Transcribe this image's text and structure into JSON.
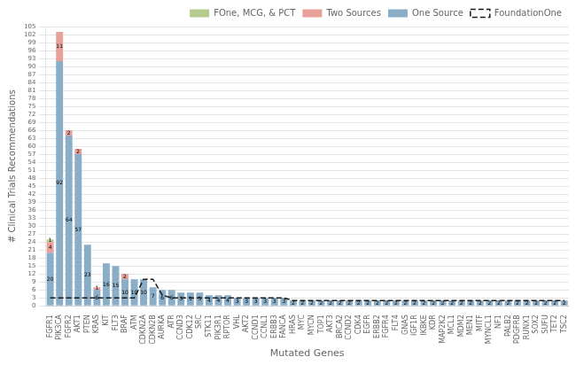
{
  "chart_data": {
    "type": "bar",
    "xlabel": "Mutated Genes",
    "ylabel": "# Clinical Trials Recommendations",
    "categories": [
      "FGFR1",
      "PIK3CA",
      "FGFR2",
      "AKT1",
      "PTEN",
      "KRAS",
      "KIT",
      "FLT3",
      "BRAF",
      "ATM",
      "CDKN2A",
      "CDKN2B",
      "AURKA",
      "ATR",
      "CCND3",
      "CDK12",
      "SRC",
      "STK11",
      "PIK3R1",
      "RPTOR",
      "VHL",
      "AKT2",
      "CCND1",
      "CCNL1",
      "ERBB3",
      "FANCA",
      "HRAS",
      "MYC",
      "MYCN",
      "TOP1",
      "AKT3",
      "BRCA2",
      "CCND2",
      "CDK4",
      "EGFR",
      "ERBB2",
      "FGFR4",
      "FLT4",
      "GNAS",
      "IGF1R",
      "IKBKE",
      "KDR",
      "MAP2K2",
      "MCL1",
      "MDM2",
      "MEN1",
      "MITF",
      "MYNCL1",
      "NF1",
      "PALB2",
      "PDGFRB",
      "RUNX1",
      "SOX2",
      "SUFU",
      "TET2",
      "TSC2"
    ],
    "series": [
      {
        "name": "One Source",
        "color": "#8aaec8",
        "data_labels": true,
        "values": [
          20,
          92,
          64,
          57,
          23,
          6,
          16,
          15,
          10,
          10,
          10,
          7,
          6,
          6,
          5,
          5,
          5,
          4,
          4,
          4,
          3,
          3,
          3,
          3,
          3,
          3,
          2,
          2,
          2,
          2,
          2,
          2,
          2,
          2,
          2,
          2,
          2,
          2,
          2,
          2,
          2,
          2,
          2,
          2,
          2,
          2,
          2,
          2,
          2,
          2,
          2,
          2,
          2,
          2,
          2,
          2
        ]
      },
      {
        "name": "Two Sources",
        "color": "#e8a09a",
        "data_labels": true,
        "values": [
          4,
          11,
          2,
          2,
          0,
          1,
          0,
          0,
          2,
          0,
          0,
          0,
          0,
          0,
          0,
          0,
          0,
          0,
          0,
          0,
          0,
          0,
          0,
          0,
          0,
          0,
          0,
          0,
          0,
          0,
          0,
          0,
          0,
          0,
          0,
          0,
          0,
          0,
          0,
          0,
          0,
          0,
          0,
          0,
          0,
          0,
          0,
          0,
          0,
          0,
          0,
          0,
          0,
          0,
          0,
          0
        ]
      },
      {
        "name": "FOne, MCG, & PCT",
        "color": "#b5cc8e",
        "data_labels": true,
        "values": [
          1,
          0,
          0,
          0,
          0,
          0,
          0,
          0,
          0,
          0,
          0,
          0,
          0,
          0,
          0,
          0,
          0,
          0,
          0,
          0,
          0,
          0,
          0,
          0,
          0,
          0,
          0,
          0,
          0,
          0,
          0,
          0,
          0,
          0,
          0,
          0,
          0,
          0,
          0,
          0,
          0,
          0,
          0,
          0,
          0,
          0,
          0,
          0,
          0,
          0,
          0,
          0,
          0,
          0,
          0,
          0
        ]
      },
      {
        "name": "FoundationOne",
        "type": "line",
        "color": "#1a1a1a",
        "line_style": "dashed",
        "values": [
          3,
          3,
          3,
          3,
          3,
          3,
          3,
          3,
          3,
          3,
          10,
          10,
          4,
          3,
          3,
          3,
          3,
          3,
          3,
          3,
          3,
          3,
          3,
          3,
          3,
          3,
          2,
          2,
          2,
          2,
          2,
          2,
          2,
          2,
          2,
          2,
          2,
          2,
          2,
          2,
          2,
          2,
          2,
          2,
          2,
          2,
          2,
          2,
          2,
          2,
          2,
          2,
          2,
          2,
          2,
          2
        ]
      }
    ],
    "stacked": true,
    "ylim": [
      0,
      105
    ],
    "yticks": [
      0,
      3,
      6,
      9,
      12,
      15,
      18,
      21,
      24,
      27,
      30,
      33,
      36,
      39,
      42,
      45,
      48,
      51,
      54,
      57,
      60,
      63,
      66,
      69,
      72,
      75,
      78,
      81,
      84,
      87,
      90,
      93,
      96,
      99,
      102,
      105
    ],
    "grid": true,
    "legend": "upper right"
  }
}
